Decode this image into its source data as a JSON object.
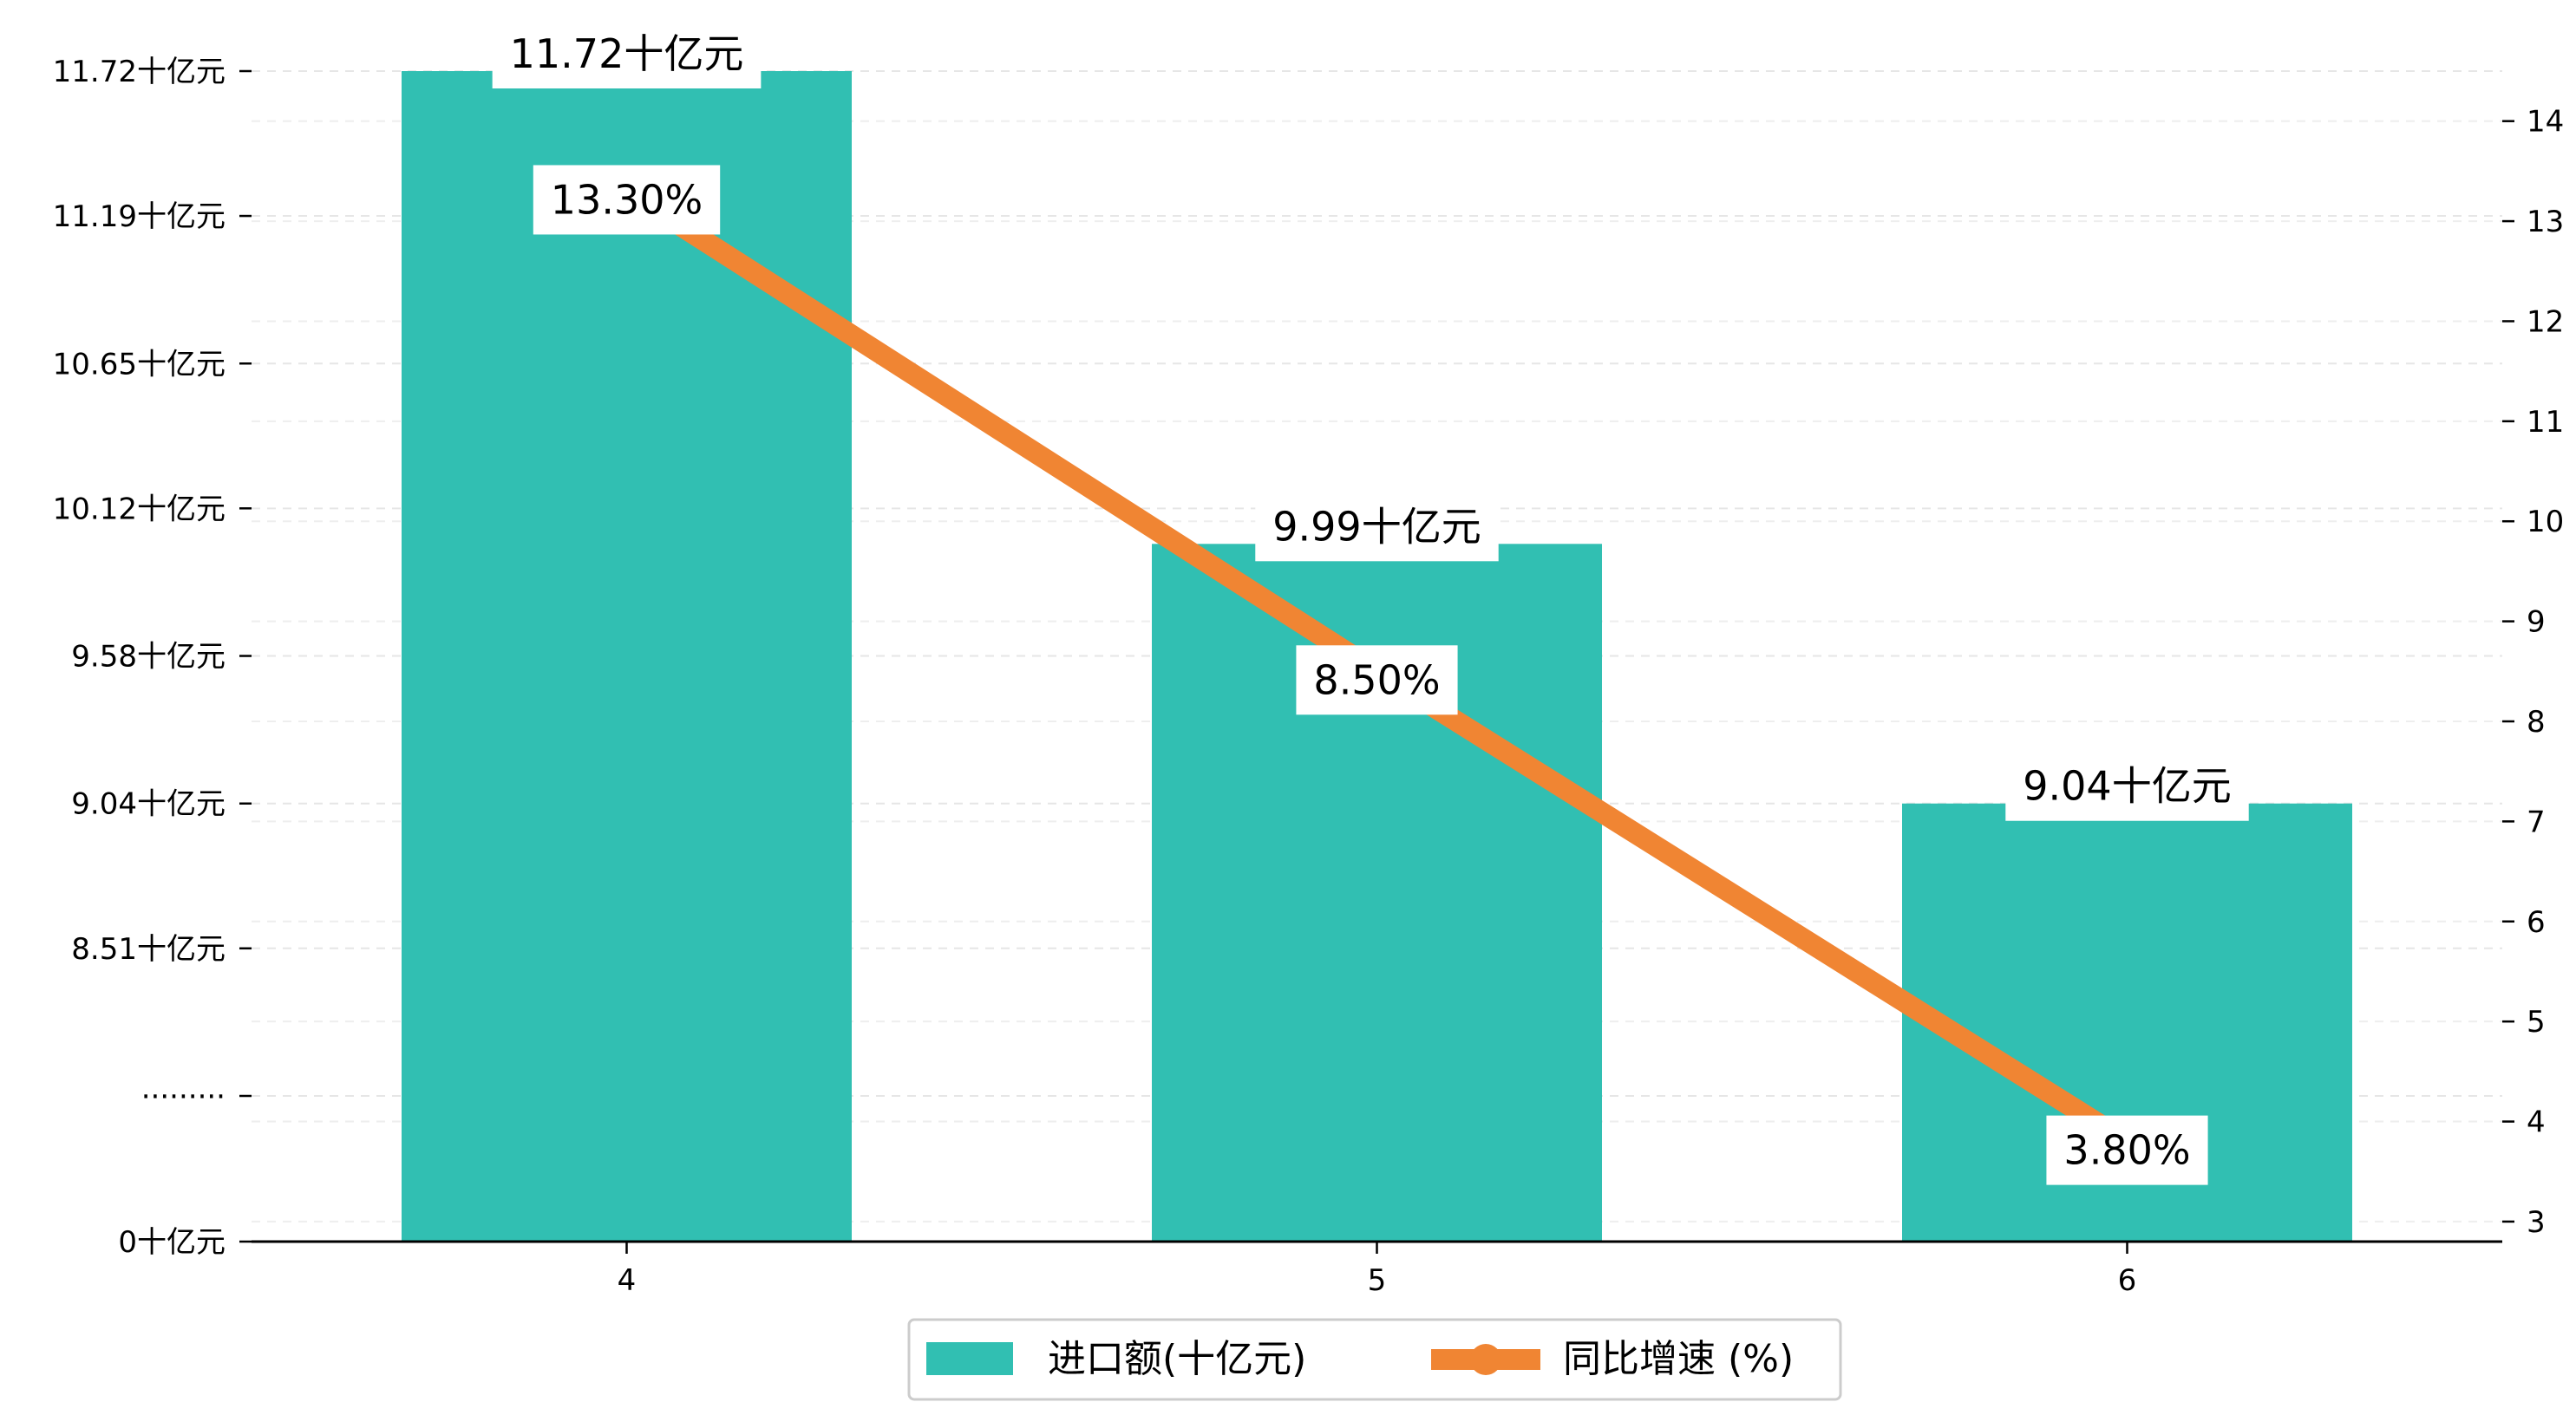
{
  "chart_data": {
    "type": "bar",
    "categories": [
      "4",
      "5",
      "6"
    ],
    "series": [
      {
        "name": "进口额(十亿元)",
        "kind": "bar",
        "axis": "left",
        "color": "#31bfb2",
        "values": [
          11.72,
          9.99,
          9.04
        ],
        "data_labels": [
          "11.72十亿元",
          "9.99十亿元",
          "9.04十亿元"
        ]
      },
      {
        "name": "同比增速 (%)",
        "kind": "line",
        "axis": "right",
        "color": "#f08533",
        "values": [
          13.3,
          8.5,
          3.8
        ],
        "data_labels": [
          "13.30%",
          "8.50%",
          "3.80%"
        ]
      }
    ],
    "left_axis": {
      "tick_labels": [
        "0十亿元",
        "·········",
        "8.51十亿元",
        "9.04十亿元",
        "9.58十亿元",
        "10.12十亿元",
        "10.65十亿元",
        "11.19十亿元",
        "11.72十亿元"
      ],
      "note": "broken axis: 0, then 7.97 to 11.72"
    },
    "right_axis": {
      "ylim": [
        2.8,
        14.5
      ],
      "ticks": [
        3,
        4,
        5,
        6,
        7,
        8,
        9,
        10,
        11,
        12,
        13,
        14
      ]
    },
    "grid": "horizontal dashed",
    "legend": "bottom-center"
  }
}
